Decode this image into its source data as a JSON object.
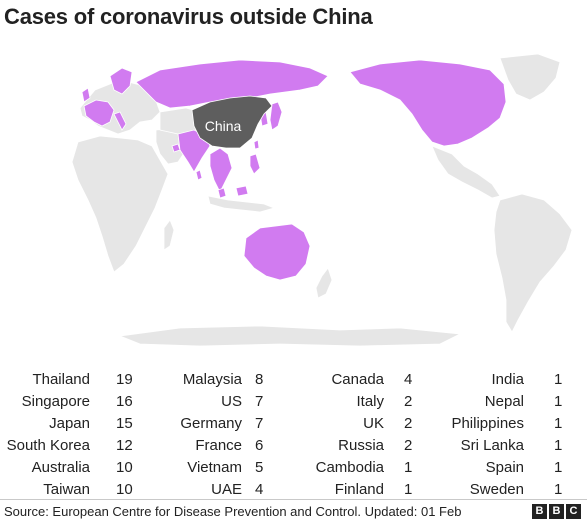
{
  "title": "Cases of coronavirus outside China",
  "map": {
    "highlight_label": "China",
    "colors": {
      "land": "#e6e6e6",
      "border": "#ffffff",
      "affected": "#d17bf0",
      "china": "#5e5e5e"
    }
  },
  "cases": [
    [
      {
        "country": "Thailand",
        "count": "19"
      },
      {
        "country": "Singapore",
        "count": "16"
      },
      {
        "country": "Japan",
        "count": "15"
      },
      {
        "country": "South Korea",
        "count": "12"
      },
      {
        "country": "Australia",
        "count": "10"
      },
      {
        "country": "Taiwan",
        "count": "10"
      }
    ],
    [
      {
        "country": "Malaysia",
        "count": "8"
      },
      {
        "country": "US",
        "count": "7"
      },
      {
        "country": "Germany",
        "count": "7"
      },
      {
        "country": "France",
        "count": "6"
      },
      {
        "country": "Vietnam",
        "count": "5"
      },
      {
        "country": "UAE",
        "count": "4"
      }
    ],
    [
      {
        "country": "Canada",
        "count": "4"
      },
      {
        "country": "Italy",
        "count": "2"
      },
      {
        "country": "UK",
        "count": "2"
      },
      {
        "country": "Russia",
        "count": "2"
      },
      {
        "country": "Cambodia",
        "count": "1"
      },
      {
        "country": "Finland",
        "count": "1"
      }
    ],
    [
      {
        "country": "India",
        "count": "1"
      },
      {
        "country": "Nepal",
        "count": "1"
      },
      {
        "country": "Philippines",
        "count": "1"
      },
      {
        "country": "Sri Lanka",
        "count": "1"
      },
      {
        "country": "Spain",
        "count": "1"
      },
      {
        "country": "Sweden",
        "count": "1"
      }
    ]
  ],
  "footer": {
    "source": "Source: European Centre for Disease Prevention and Control. Updated: 01 Feb",
    "logo_letters": [
      "B",
      "B",
      "C"
    ]
  }
}
